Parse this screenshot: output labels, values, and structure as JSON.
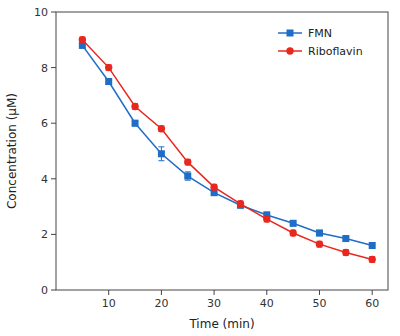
{
  "chart_data": {
    "type": "line",
    "xlabel": "Time (min)",
    "ylabel": "Concentration (μM)",
    "x": [
      5,
      10,
      15,
      20,
      25,
      30,
      35,
      40,
      45,
      50,
      55,
      60
    ],
    "series": [
      {
        "name": "FMN",
        "color": "#1e6ec8",
        "marker": "square",
        "values": [
          8.8,
          7.5,
          6.0,
          4.9,
          4.1,
          3.5,
          3.05,
          2.7,
          2.4,
          2.05,
          1.85,
          1.6
        ],
        "error": [
          0.1,
          0.1,
          0.1,
          0.25,
          0.15,
          0.1,
          0.1,
          0.1,
          0.1,
          0.1,
          0.1,
          0.1
        ]
      },
      {
        "name": "Riboflavin",
        "color": "#e8281e",
        "marker": "circle",
        "values": [
          9.0,
          8.0,
          6.6,
          5.8,
          4.6,
          3.7,
          3.1,
          2.55,
          2.05,
          1.65,
          1.35,
          1.1
        ],
        "error": [
          0.1,
          0.1,
          0.1,
          0.1,
          0.1,
          0.1,
          0.1,
          0.1,
          0.1,
          0.1,
          0.1,
          0.1
        ]
      }
    ],
    "xlim": [
      0,
      63
    ],
    "ylim": [
      0,
      10
    ],
    "xticks": [
      10,
      20,
      30,
      40,
      50,
      60
    ],
    "yticks": [
      0,
      2,
      4,
      6,
      8,
      10
    ],
    "grid": false,
    "legend": "upper right"
  }
}
